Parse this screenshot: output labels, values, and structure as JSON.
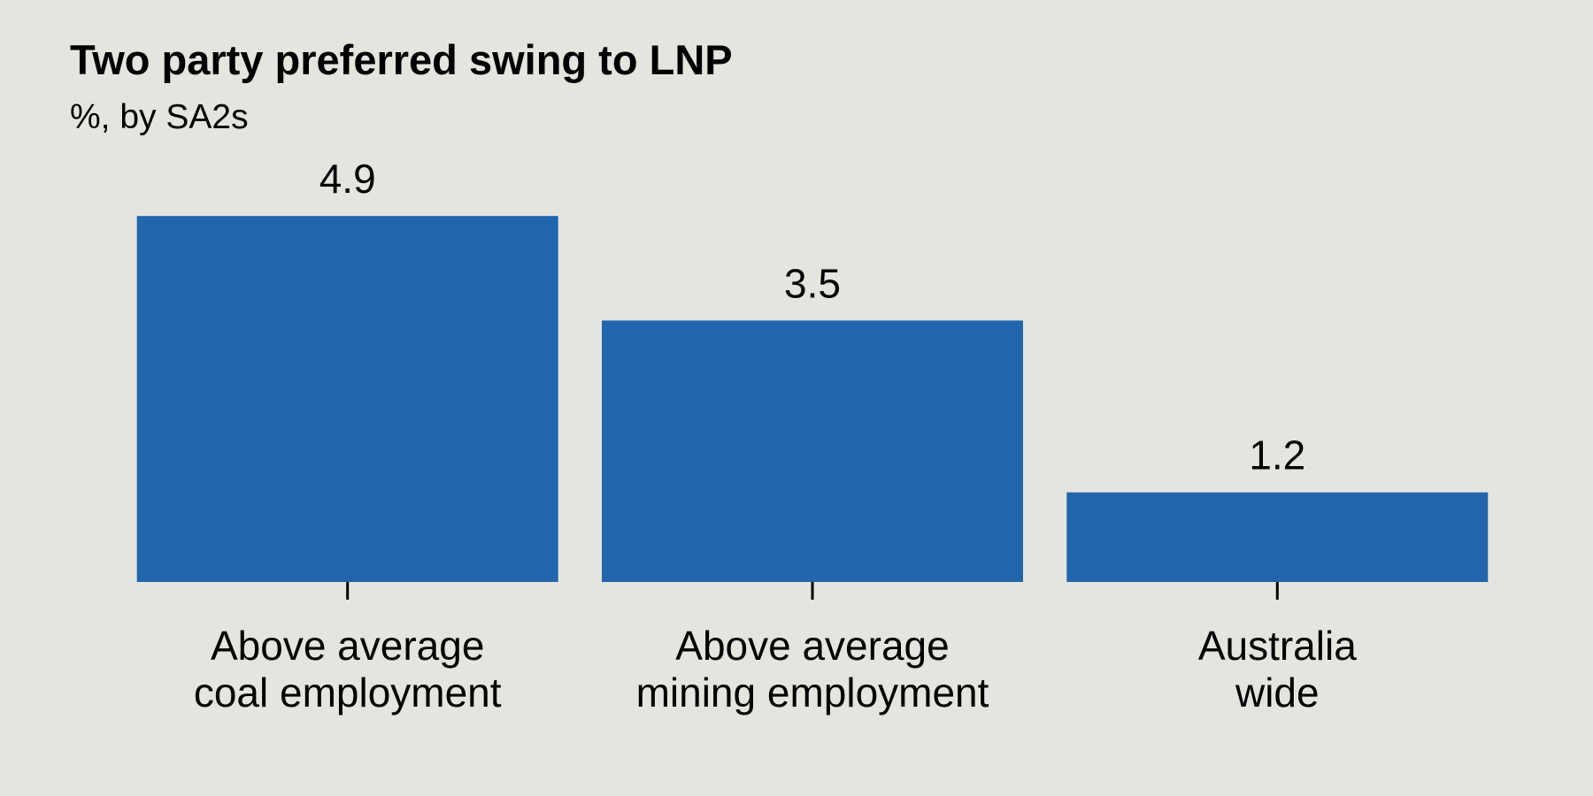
{
  "chart_data": {
    "type": "bar",
    "title": "Two party preferred swing to LNP",
    "subtitle": "%, by SA2s",
    "xlabel": "",
    "ylabel": "",
    "categories": [
      [
        "Above average",
        "coal employment"
      ],
      [
        "Above average",
        "mining employment"
      ],
      [
        "Australia",
        "wide"
      ]
    ],
    "values": [
      4.9,
      3.5,
      1.2
    ],
    "value_labels": [
      "4.9",
      "3.5",
      "1.2"
    ],
    "ylim": [
      0,
      5.4
    ],
    "grid": false,
    "legend": "none",
    "colors": {
      "bar": "#2166ac",
      "background": "#e5e5e0",
      "text": "#000000",
      "axis_tick": "#000000"
    }
  }
}
